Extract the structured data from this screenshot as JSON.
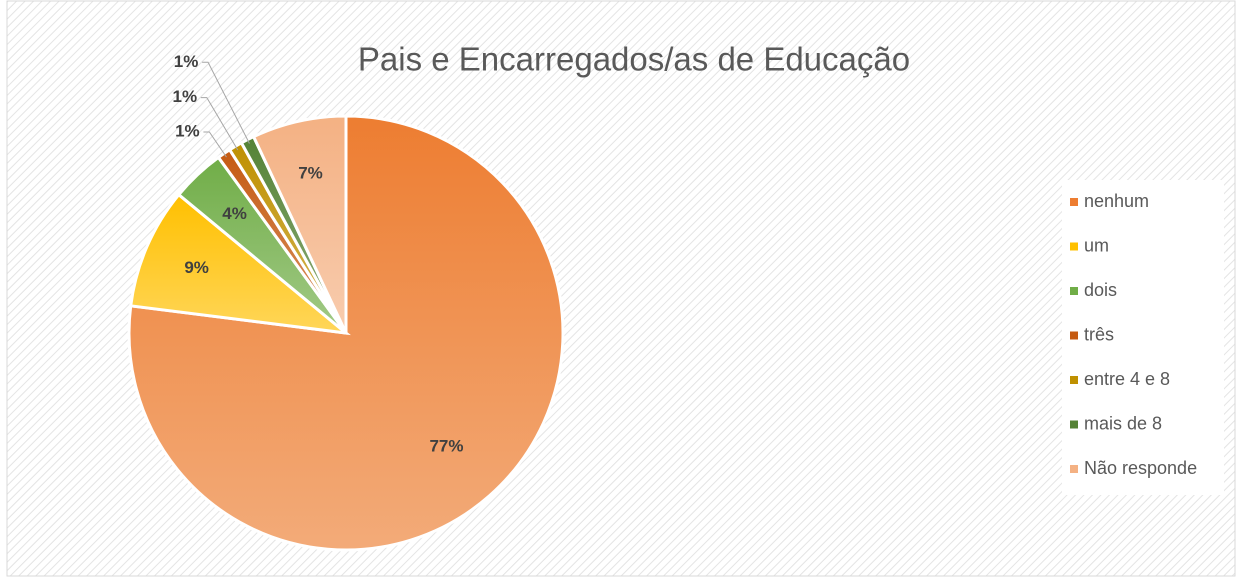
{
  "chart_data": {
    "type": "pie",
    "title": "Pais e Encarregados/as de Educação",
    "categories": [
      "nenhum",
      "um",
      "dois",
      "três",
      "entre 4 e 8",
      "mais de 8",
      "Não responde"
    ],
    "values": [
      77,
      9,
      4,
      1,
      1,
      1,
      7
    ],
    "value_labels": [
      "77%",
      "9%",
      "4%",
      "1%",
      "1%",
      "1%",
      "7%"
    ],
    "colors": [
      "#ED7D31",
      "#FFC000",
      "#70AD47",
      "#C55A11",
      "#BF9000",
      "#548235",
      "#F4B183"
    ],
    "legend": "right"
  }
}
